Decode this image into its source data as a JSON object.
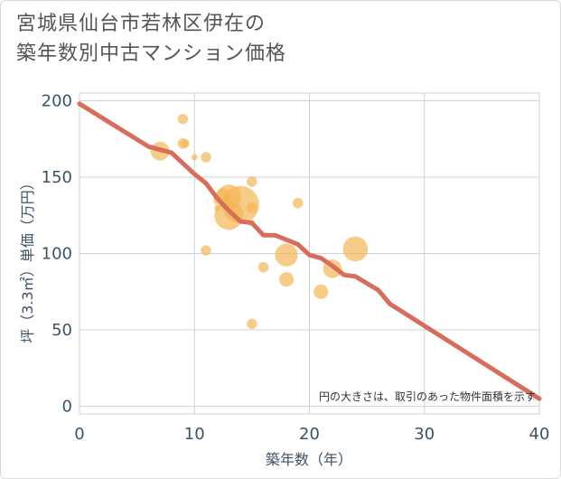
{
  "title_lines": [
    "宮城県仙台市若林区伊在の",
    "築年数別中古マンション価格"
  ],
  "colors": {
    "bubble": "#f3b44f",
    "trend": "#d76e5c",
    "grid": "#c9d3de",
    "axis_text": "#3e5266",
    "title_text": "#555555"
  },
  "chart_data": {
    "type": "scatter",
    "xlabel": "築年数（年）",
    "ylabel": "坪（3.3㎡）単価（万円）",
    "xlim": [
      0,
      40
    ],
    "ylim": [
      -5,
      205
    ],
    "xticks": [
      0,
      10,
      20,
      30,
      40
    ],
    "yticks": [
      0,
      50,
      100,
      150,
      200
    ],
    "note": "円の大きさは、取引のあった物件面積を示す",
    "points": [
      {
        "x": 7,
        "y": 167,
        "s": 9
      },
      {
        "x": 9,
        "y": 188,
        "s": 5
      },
      {
        "x": 9,
        "y": 172,
        "s": 5
      },
      {
        "x": 9.2,
        "y": 172,
        "s": 4
      },
      {
        "x": 10,
        "y": 163,
        "s": 3
      },
      {
        "x": 11,
        "y": 163,
        "s": 5
      },
      {
        "x": 11,
        "y": 102,
        "s": 5
      },
      {
        "x": 12,
        "y": 130,
        "s": 3
      },
      {
        "x": 12,
        "y": 135,
        "s": 4
      },
      {
        "x": 12.5,
        "y": 138,
        "s": 7
      },
      {
        "x": 13,
        "y": 137,
        "s": 12
      },
      {
        "x": 13,
        "y": 125,
        "s": 14
      },
      {
        "x": 14,
        "y": 132,
        "s": 18
      },
      {
        "x": 15,
        "y": 147,
        "s": 5
      },
      {
        "x": 15,
        "y": 130,
        "s": 5
      },
      {
        "x": 15,
        "y": 120,
        "s": 3
      },
      {
        "x": 15,
        "y": 54,
        "s": 5
      },
      {
        "x": 16,
        "y": 91,
        "s": 5
      },
      {
        "x": 18,
        "y": 99,
        "s": 11
      },
      {
        "x": 18,
        "y": 83,
        "s": 7
      },
      {
        "x": 19,
        "y": 133,
        "s": 5
      },
      {
        "x": 21,
        "y": 75,
        "s": 7
      },
      {
        "x": 22,
        "y": 90,
        "s": 9
      },
      {
        "x": 24,
        "y": 103,
        "s": 12
      }
    ],
    "trend": {
      "x": [
        0,
        6,
        8,
        10,
        11,
        12,
        13,
        14,
        15,
        16,
        17,
        19,
        20,
        21,
        22,
        23,
        24,
        26,
        27,
        40
      ],
      "y": [
        198,
        170,
        166,
        152,
        146,
        136,
        128,
        121,
        120,
        112,
        112,
        106,
        99,
        97,
        92,
        86,
        85,
        76,
        67,
        5
      ]
    }
  }
}
